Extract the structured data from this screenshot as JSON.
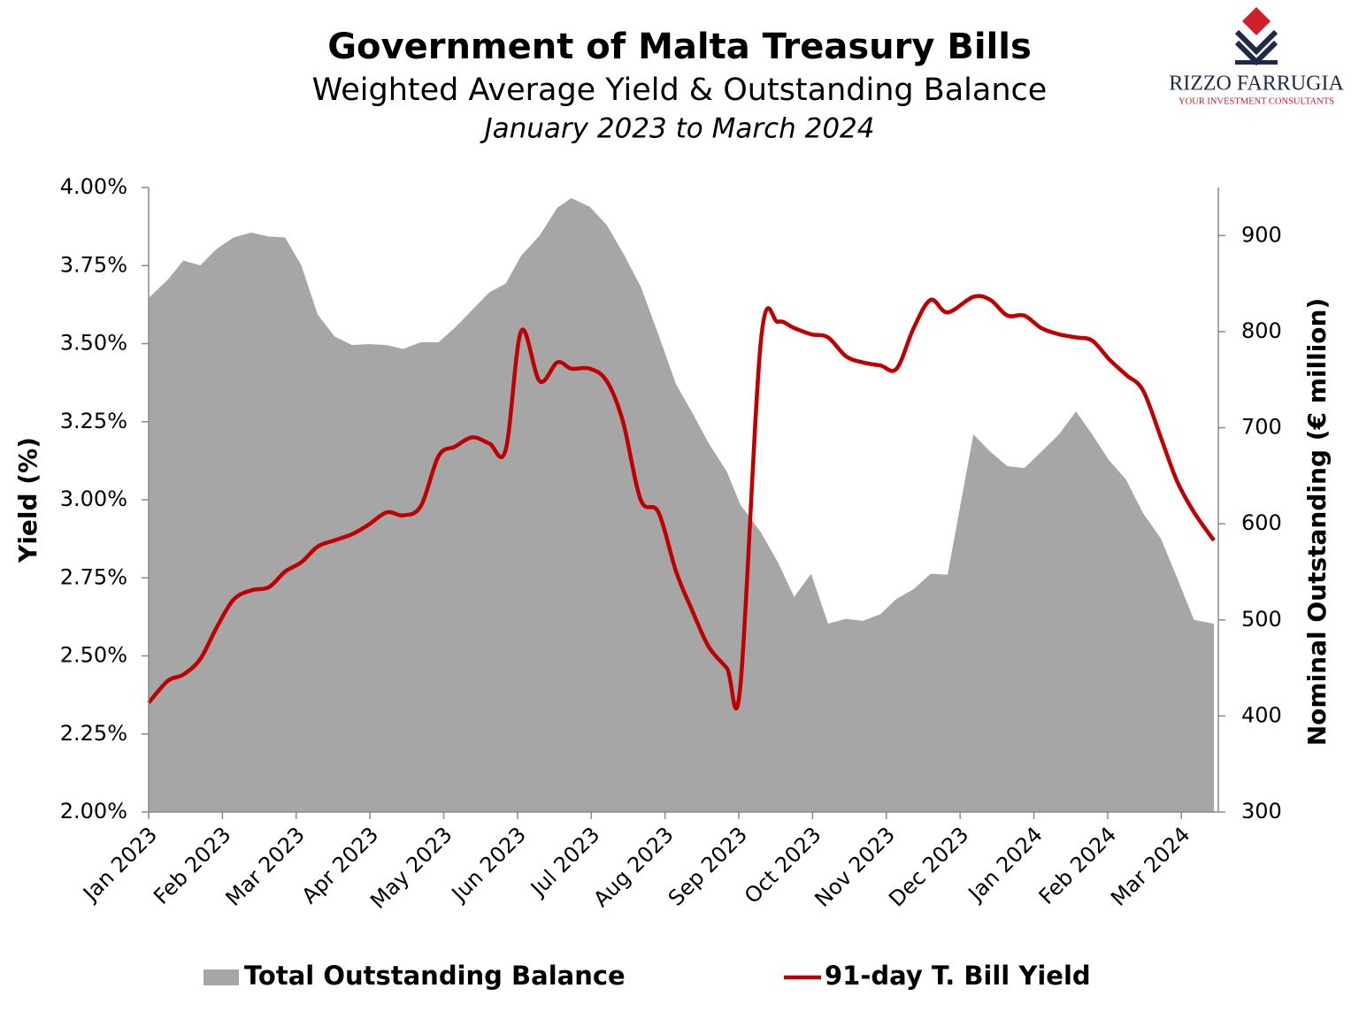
{
  "chart_data": {
    "type": "combo",
    "title": "Government of Malta Treasury Bills",
    "subtitle": "Weighted Average Yield & Outstanding Balance",
    "period": "January 2023 to March 2024",
    "y_label": "Yield (%)",
    "y2_label": "Nominal Outstanding (€ million)",
    "xlim": [
      0,
      14.5
    ],
    "xticks": [
      {
        "value": 0,
        "label": "Jan 2023"
      },
      {
        "value": 1,
        "label": "Feb 2023"
      },
      {
        "value": 2,
        "label": "Mar 2023"
      },
      {
        "value": 3,
        "label": "Apr 2023"
      },
      {
        "value": 4,
        "label": "May 2023"
      },
      {
        "value": 5,
        "label": "Jun 2023"
      },
      {
        "value": 6,
        "label": "Jul 2023"
      },
      {
        "value": 7,
        "label": "Aug 2023"
      },
      {
        "value": 8,
        "label": "Sep 2023"
      },
      {
        "value": 9,
        "label": "Oct 2023"
      },
      {
        "value": 10,
        "label": "Nov 2023"
      },
      {
        "value": 11,
        "label": "Dec 2023"
      },
      {
        "value": 12,
        "label": "Jan 2024"
      },
      {
        "value": 13,
        "label": "Feb 2024"
      },
      {
        "value": 14,
        "label": "Mar 2024"
      }
    ],
    "ylim": [
      2.0,
      4.0
    ],
    "yticks": [
      {
        "value": 2.0,
        "label": "2.00%"
      },
      {
        "value": 2.25,
        "label": "2.25%"
      },
      {
        "value": 2.5,
        "label": "2.50%"
      },
      {
        "value": 2.75,
        "label": "2.75%"
      },
      {
        "value": 3.0,
        "label": "3.00%"
      },
      {
        "value": 3.25,
        "label": "3.25%"
      },
      {
        "value": 3.5,
        "label": "3.50%"
      },
      {
        "value": 3.75,
        "label": "3.75%"
      },
      {
        "value": 4.0,
        "label": "4.00%"
      }
    ],
    "y2lim": [
      300,
      950
    ],
    "y2ticks": [
      300,
      400,
      500,
      600,
      700,
      800,
      900
    ],
    "x": [
      0,
      0.26,
      0.47,
      0.7,
      0.92,
      1.15,
      1.39,
      1.63,
      1.85,
      2.07,
      2.29,
      2.52,
      2.76,
      2.98,
      3.23,
      3.45,
      3.69,
      3.93,
      4.15,
      4.39,
      4.62,
      4.84,
      5.05,
      5.3,
      5.54,
      5.73,
      5.98,
      6.21,
      6.43,
      6.67,
      6.91,
      7.15,
      7.36,
      7.59,
      7.84,
      8.02,
      8.3,
      8.53,
      8.75,
      8.98,
      9.21,
      9.45,
      9.68,
      9.92,
      10.14,
      10.37,
      10.6,
      10.83,
      11.18,
      11.41,
      11.64,
      11.87,
      12.1,
      12.34,
      12.57,
      12.79,
      13.02,
      13.25,
      13.48,
      13.72,
      13.94,
      14.17,
      14.44
    ],
    "series": [
      {
        "name": "Total Outstanding Balance",
        "type": "area",
        "axis": "y2",
        "color": "#a6a6a6",
        "values": [
          835,
          854,
          874,
          869,
          886,
          898,
          903,
          899,
          898,
          869,
          818,
          795,
          786,
          787,
          786,
          782,
          789,
          789,
          804,
          823,
          841,
          850,
          879,
          900,
          929,
          939,
          930,
          911,
          882,
          847,
          797,
          745,
          717,
          684,
          654,
          620,
          591,
          560,
          524,
          548,
          496,
          501,
          499,
          506,
          522,
          532,
          548,
          547,
          693,
          675,
          660,
          658,
          675,
          693,
          717,
          693,
          666,
          646,
          611,
          585,
          544,
          500,
          496
        ]
      },
      {
        "name": "91-day T. Bill Yield",
        "type": "line",
        "axis": "y",
        "color": "#c00000",
        "values": [
          2.35,
          2.42,
          2.44,
          2.49,
          2.59,
          2.68,
          2.71,
          2.72,
          2.77,
          2.8,
          2.85,
          2.87,
          2.89,
          2.92,
          2.96,
          2.95,
          2.98,
          3.14,
          3.17,
          3.2,
          3.18,
          3.16,
          3.54,
          3.38,
          3.44,
          3.42,
          3.42,
          3.38,
          3.25,
          3.0,
          2.96,
          2.77,
          2.65,
          2.53,
          2.46,
          2.4,
          3.51,
          3.57,
          3.55,
          3.53,
          3.52,
          3.46,
          3.44,
          3.43,
          3.42,
          3.55,
          3.64,
          3.6,
          3.65,
          3.64,
          3.59,
          3.59,
          3.55,
          3.53,
          3.52,
          3.51,
          3.45,
          3.4,
          3.35,
          3.2,
          3.06,
          2.96,
          2.87
        ]
      }
    ]
  },
  "logo": {
    "name": "RIZZO FARRUGIA",
    "tagline": "YOUR INVESTMENT CONSULTANTS"
  }
}
